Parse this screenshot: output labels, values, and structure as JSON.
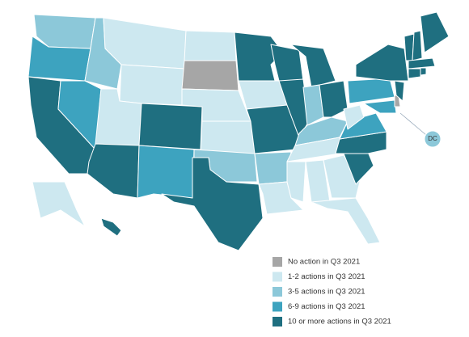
{
  "legend": [
    {
      "label": "No action in Q3 2021",
      "color": "#a6a6a6"
    },
    {
      "label": "1-2 actions in Q3 2021",
      "color": "#cde8f0"
    },
    {
      "label": "3-5 actions in Q3 2021",
      "color": "#8cc8d9"
    },
    {
      "label": "6-9 actions in Q3 2021",
      "color": "#3da3bf"
    },
    {
      "label": "10 or more actions in Q3 2021",
      "color": "#1f6f80"
    }
  ],
  "dc_label": "DC"
}
